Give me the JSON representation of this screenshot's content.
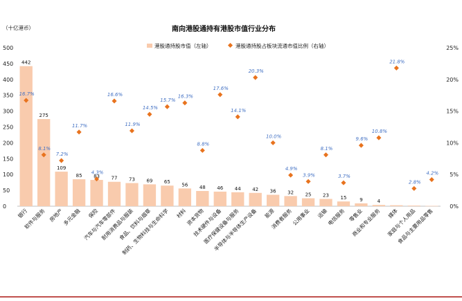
{
  "chart_data": {
    "type": "bar",
    "title": "南向港股通持有港股市值行业分布",
    "y_unit_label": "（十亿港币）",
    "categories": [
      "银行",
      "软件与服务",
      "房地产",
      "多元金融",
      "保险",
      "汽车与汽车零部件",
      "耐用消费品与服装",
      "食品、饮料与烟草",
      "制药、生物科技与生命科学",
      "材料",
      "资本货物",
      "技术硬件与设备",
      "医疗保健设备与服务",
      "半导体与半导体生产设备",
      "能源",
      "消费者服务",
      "公用事业",
      "运输",
      "电信服务",
      "零售业",
      "商业和专业服务",
      "媒体",
      "家庭与个人用品",
      "食品与主要用品零售"
    ],
    "series": [
      {
        "name": "港股通持股市值（左轴）",
        "type": "bar",
        "axis": "left",
        "values": [
          442,
          275,
          109,
          85,
          83,
          77,
          73,
          69,
          65,
          56,
          48,
          46,
          44,
          42,
          36,
          32,
          25,
          23,
          15,
          9,
          4,
          3,
          2,
          1
        ]
      },
      {
        "name": "港股通持股占板块流通市值比例（右轴）",
        "type": "scatter",
        "axis": "right",
        "values": [
          16.7,
          8.1,
          7.2,
          11.7,
          4.3,
          16.6,
          11.9,
          14.5,
          15.7,
          16.3,
          8.8,
          17.6,
          14.1,
          20.3,
          10.0,
          4.9,
          3.9,
          8.1,
          3.7,
          9.6,
          10.8,
          21.8,
          2.8,
          4.2
        ]
      }
    ],
    "bar_labels": [
      "442",
      "275",
      "109",
      "85",
      "83",
      "77",
      "73",
      "69",
      "65",
      "56",
      "48",
      "46",
      "44",
      "42",
      "36",
      "32",
      "25",
      "23",
      "15",
      "9",
      "4",
      "",
      "",
      ""
    ],
    "pct_labels": [
      "16.7%",
      "8.1%",
      "7.2%",
      "11.7%",
      "4.3%",
      "16.6%",
      "11.9%",
      "14.5%",
      "15.7%",
      "16.3%",
      "8.8%",
      "17.6%",
      "14.1%",
      "20.3%",
      "10.0%",
      "4.9%",
      "3.9%",
      "8.1%",
      "3.7%",
      "9.6%",
      "10.8%",
      "21.8%",
      "2.8%",
      "4.2%"
    ],
    "left_axis": {
      "min": 0,
      "max": 500,
      "step": 50,
      "ticks": [
        "0",
        "50",
        "100",
        "150",
        "200",
        "250",
        "300",
        "350",
        "400",
        "450",
        "500"
      ]
    },
    "right_axis": {
      "min": 0,
      "max": 25,
      "step": 5,
      "ticks": [
        "0%",
        "5%",
        "10%",
        "15%",
        "20%",
        "25%"
      ]
    },
    "legend_position": "top-center",
    "grid": false,
    "colors": {
      "bar": "#f9cbad",
      "marker": "#e8731e",
      "pct_label": "#4472c4",
      "rule": "#c0504d"
    }
  }
}
